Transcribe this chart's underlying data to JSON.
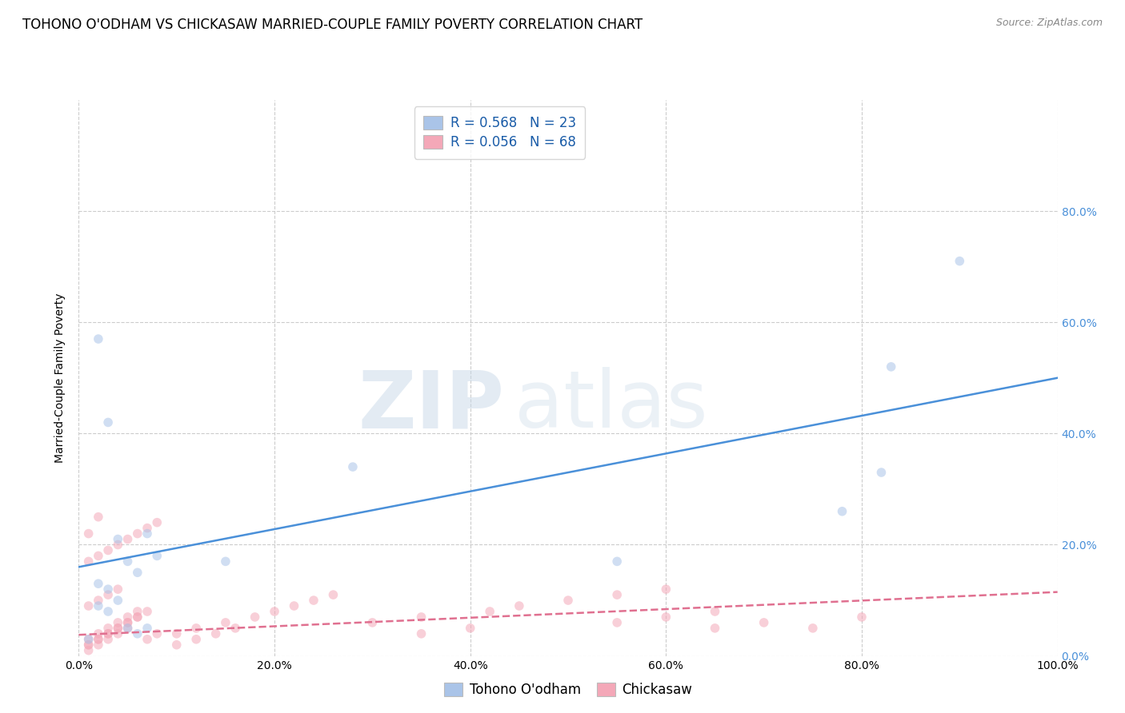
{
  "title": "TOHONO O'ODHAM VS CHICKASAW MARRIED-COUPLE FAMILY POVERTY CORRELATION CHART",
  "source": "Source: ZipAtlas.com",
  "ylabel": "Married-Couple Family Poverty",
  "watermark_top": "ZIP",
  "watermark_bot": "atlas",
  "xlim": [
    0.0,
    1.0
  ],
  "ylim": [
    0.0,
    1.0
  ],
  "xticks": [
    0.0,
    0.2,
    0.4,
    0.6,
    0.8,
    1.0
  ],
  "yticks": [
    0.0,
    0.2,
    0.4,
    0.6,
    0.8
  ],
  "xticklabels": [
    "0.0%",
    "20.0%",
    "40.0%",
    "60.0%",
    "80.0%",
    "100.0%"
  ],
  "yticklabels": [
    "0.0%",
    "20.0%",
    "40.0%",
    "60.0%",
    "80.0%"
  ],
  "tohono_color": "#aac4e8",
  "chickasaw_color": "#f4a8b8",
  "tohono_line_color": "#4a90d9",
  "chickasaw_line_color": "#e07090",
  "tohono_R": "0.568",
  "tohono_N": "23",
  "chickasaw_R": "0.056",
  "chickasaw_N": "68",
  "legend_color": "#1a5ca8",
  "tohono_x": [
    0.02,
    0.03,
    0.04,
    0.05,
    0.06,
    0.07,
    0.08,
    0.02,
    0.03,
    0.04,
    0.02,
    0.03,
    0.15,
    0.28,
    0.05,
    0.06,
    0.07,
    0.55,
    0.78,
    0.82,
    0.9,
    0.83,
    0.01
  ],
  "tohono_y": [
    0.57,
    0.42,
    0.21,
    0.17,
    0.15,
    0.22,
    0.18,
    0.13,
    0.12,
    0.1,
    0.09,
    0.08,
    0.17,
    0.34,
    0.05,
    0.04,
    0.05,
    0.17,
    0.26,
    0.33,
    0.71,
    0.52,
    0.03
  ],
  "chickasaw_x": [
    0.01,
    0.02,
    0.03,
    0.04,
    0.05,
    0.06,
    0.07,
    0.08,
    0.01,
    0.02,
    0.03,
    0.04,
    0.05,
    0.06,
    0.01,
    0.02,
    0.03,
    0.04,
    0.05,
    0.01,
    0.02,
    0.03,
    0.04,
    0.05,
    0.06,
    0.07,
    0.01,
    0.02,
    0.01,
    0.02,
    0.03,
    0.04,
    0.05,
    0.06,
    0.07,
    0.08,
    0.01,
    0.02,
    0.03,
    0.04,
    0.1,
    0.12,
    0.15,
    0.18,
    0.2,
    0.22,
    0.24,
    0.26,
    0.1,
    0.12,
    0.14,
    0.16,
    0.3,
    0.35,
    0.42,
    0.45,
    0.5,
    0.55,
    0.6,
    0.65,
    0.7,
    0.75,
    0.8,
    0.35,
    0.4,
    0.55,
    0.6,
    0.65
  ],
  "chickasaw_y": [
    0.03,
    0.04,
    0.05,
    0.06,
    0.07,
    0.08,
    0.03,
    0.04,
    0.02,
    0.03,
    0.04,
    0.05,
    0.06,
    0.07,
    0.01,
    0.02,
    0.03,
    0.04,
    0.05,
    0.02,
    0.03,
    0.04,
    0.05,
    0.06,
    0.07,
    0.08,
    0.22,
    0.25,
    0.17,
    0.18,
    0.19,
    0.2,
    0.21,
    0.22,
    0.23,
    0.24,
    0.09,
    0.1,
    0.11,
    0.12,
    0.04,
    0.05,
    0.06,
    0.07,
    0.08,
    0.09,
    0.1,
    0.11,
    0.02,
    0.03,
    0.04,
    0.05,
    0.06,
    0.07,
    0.08,
    0.09,
    0.1,
    0.11,
    0.12,
    0.05,
    0.06,
    0.05,
    0.07,
    0.04,
    0.05,
    0.06,
    0.07,
    0.08
  ],
  "background_color": "#ffffff",
  "grid_color": "#cccccc",
  "title_fontsize": 12,
  "axis_label_fontsize": 10,
  "tick_fontsize": 10,
  "legend_fontsize": 12,
  "marker_size": 70,
  "marker_alpha": 0.55,
  "line_width": 1.8,
  "tohono_line_x": [
    0.0,
    1.0
  ],
  "tohono_line_y": [
    0.16,
    0.5
  ],
  "chickasaw_line_x": [
    0.0,
    1.0
  ],
  "chickasaw_line_y": [
    0.038,
    0.115
  ]
}
